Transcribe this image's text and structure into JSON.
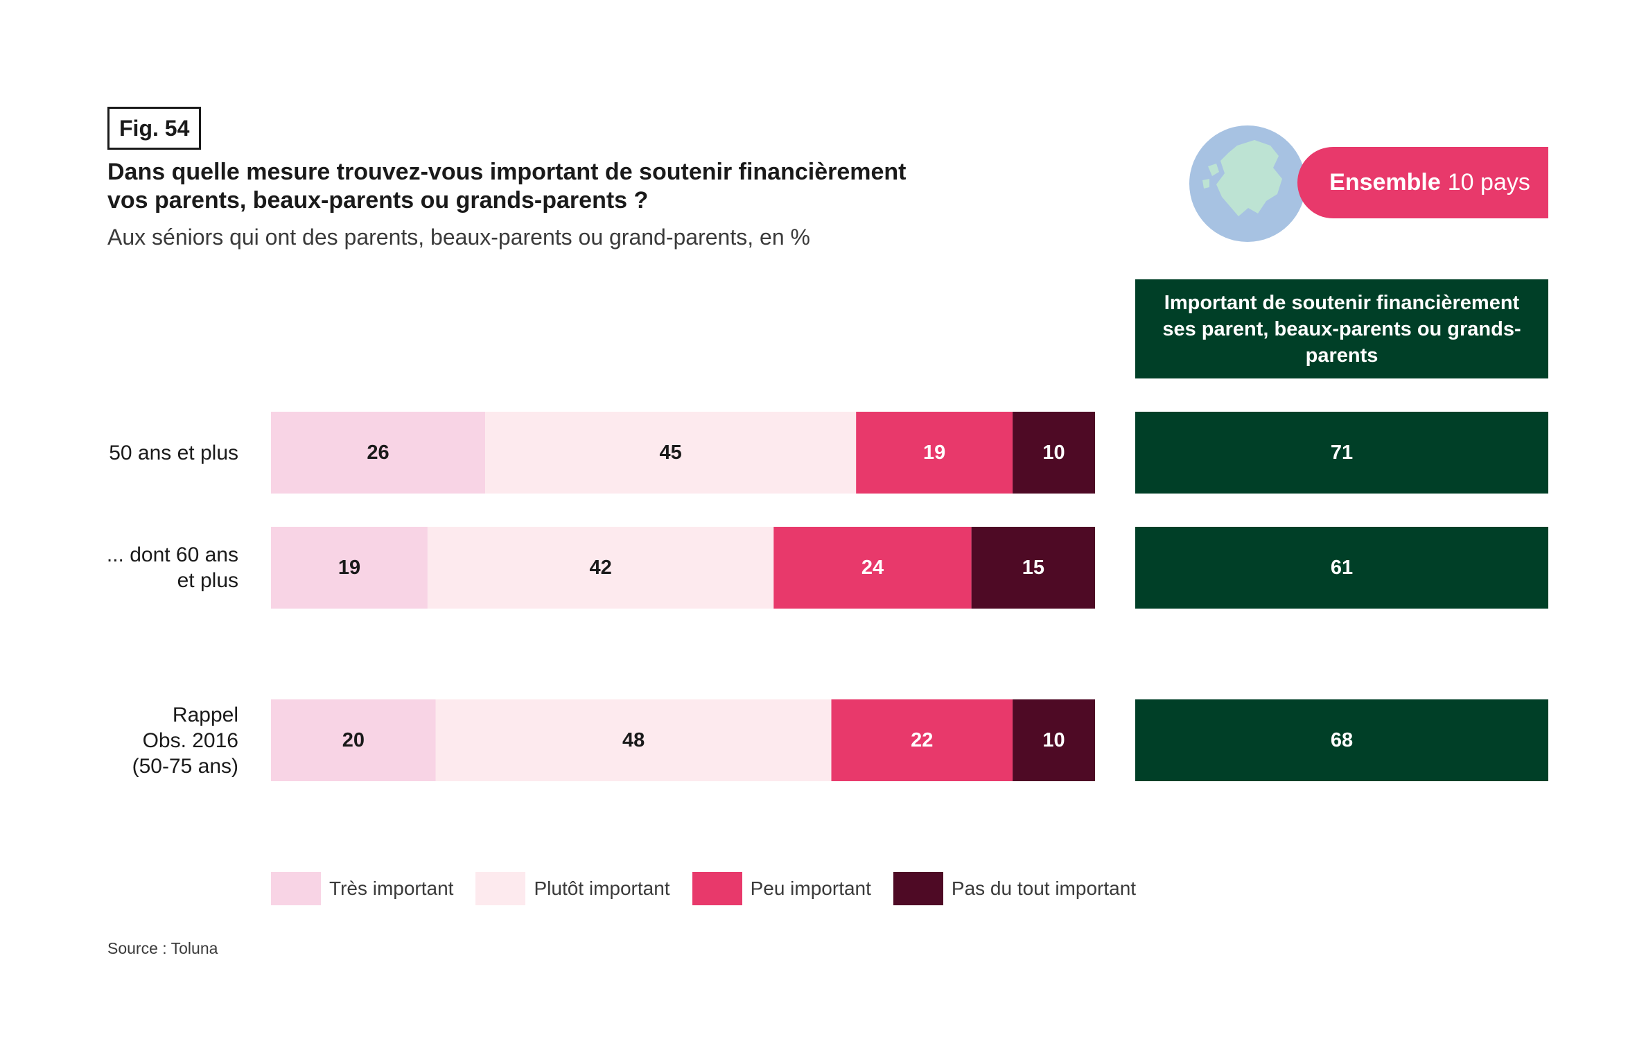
{
  "figure_label": "Fig. 54",
  "title": "Dans quelle mesure trouvez-vous important de soutenir financièrement vos parents, beaux-parents ou grands-parents ?",
  "subtitle": "Aux séniors qui ont des parents, beaux-parents ou grand-parents, en %",
  "badge": {
    "bold": "Ensemble",
    "rest": "10 pays",
    "icon": "europe-globe-icon"
  },
  "side_header": "Important de soutenir financièrement ses parent, beaux-parents ou grands-parents",
  "source": "Source : Toluna",
  "colors": {
    "tres": "#f8d4e5",
    "plutot": "#fdeaee",
    "peu": "#e8396b",
    "pas": "#4e0a25",
    "side": "#003f27"
  },
  "chart_data": {
    "type": "bar",
    "orientation": "horizontal",
    "stacked": true,
    "categories": [
      "50 ans et plus",
      "... dont 60 ans\net plus",
      "Rappel\nObs. 2016\n(50-75 ans)"
    ],
    "series": [
      {
        "name": "Très important",
        "color": "#f8d4e5",
        "values": [
          26,
          19,
          20
        ]
      },
      {
        "name": "Plutôt important",
        "color": "#fdeaee",
        "values": [
          45,
          42,
          48
        ]
      },
      {
        "name": "Peu important",
        "color": "#e8396b",
        "values": [
          19,
          24,
          22
        ]
      },
      {
        "name": "Pas du tout important",
        "color": "#4e0a25",
        "values": [
          10,
          15,
          10
        ]
      }
    ],
    "side_values": [
      71,
      61,
      68
    ],
    "legend_position": "bottom"
  }
}
